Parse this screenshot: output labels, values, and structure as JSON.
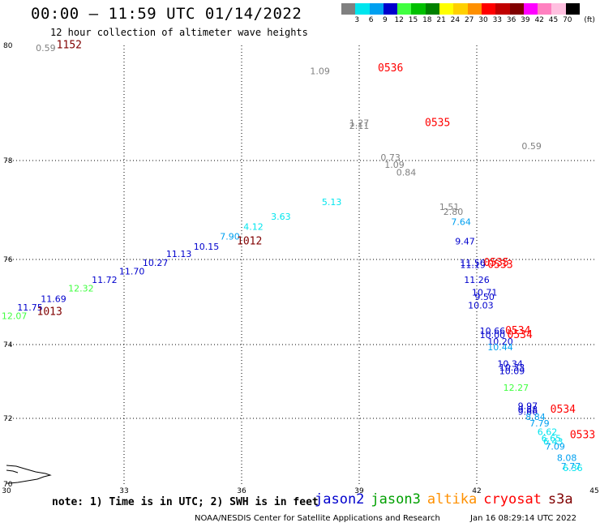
{
  "header": {
    "title": "00:00 – 11:59 UTC 01/14/2022",
    "subtitle": "12 hour collection of altimeter wave heights"
  },
  "legend": {
    "unit": "(ft)",
    "bins": [
      {
        "label": "3",
        "color": "#808080"
      },
      {
        "label": "6",
        "color": "#00e5ee"
      },
      {
        "label": "9",
        "color": "#00a0f0"
      },
      {
        "label": "12",
        "color": "#0000cd"
      },
      {
        "label": "15",
        "color": "#40ff40"
      },
      {
        "label": "18",
        "color": "#00c000"
      },
      {
        "label": "21",
        "color": "#008000"
      },
      {
        "label": "24",
        "color": "#ffff00"
      },
      {
        "label": "27",
        "color": "#ffd000"
      },
      {
        "label": "30",
        "color": "#ff9000"
      },
      {
        "label": "33",
        "color": "#ff0000"
      },
      {
        "label": "36",
        "color": "#c00000"
      },
      {
        "label": "39",
        "color": "#800000"
      },
      {
        "label": "42",
        "color": "#ff00ff"
      },
      {
        "label": "45",
        "color": "#ff80c0"
      },
      {
        "label": "70",
        "color": "#ffc0e0"
      },
      {
        "label": "",
        "color": "#000000"
      }
    ]
  },
  "map": {
    "lon_range": [
      30,
      45
    ],
    "lat_range": [
      70,
      80
    ],
    "lon_ticks": [
      "30",
      "33",
      "36",
      "39",
      "42",
      "45"
    ],
    "lat_ticks": [
      "70",
      "72",
      "74",
      "76",
      "78",
      "80"
    ]
  },
  "chart_data": {
    "type": "scatter",
    "x_label": "longitude",
    "y_label": "latitude",
    "points": [
      {
        "lon": 30.2,
        "lat": 74.6,
        "text": "12.07",
        "color": "#40ff40"
      },
      {
        "lon": 30.6,
        "lat": 74.8,
        "text": "11.75",
        "color": "#0000cd"
      },
      {
        "lon": 31.2,
        "lat": 75.0,
        "text": "11.69",
        "color": "#0000cd"
      },
      {
        "lon": 31.9,
        "lat": 75.25,
        "text": "12.32",
        "color": "#40ff40"
      },
      {
        "lon": 32.5,
        "lat": 75.45,
        "text": "11.72",
        "color": "#0000cd"
      },
      {
        "lon": 33.2,
        "lat": 75.65,
        "text": "11.70",
        "color": "#0000cd"
      },
      {
        "lon": 33.8,
        "lat": 75.85,
        "text": "10.27",
        "color": "#0000cd"
      },
      {
        "lon": 34.4,
        "lat": 76.05,
        "text": "11.13",
        "color": "#0000cd"
      },
      {
        "lon": 35.1,
        "lat": 76.2,
        "text": "10.15",
        "color": "#0000cd"
      },
      {
        "lon": 35.7,
        "lat": 76.4,
        "text": "7.90",
        "color": "#00a0f0"
      },
      {
        "lon": 36.3,
        "lat": 76.6,
        "text": "4.12",
        "color": "#00e5ee"
      },
      {
        "lon": 37.0,
        "lat": 76.8,
        "text": "3.63",
        "color": "#00e5ee"
      },
      {
        "lon": 38.3,
        "lat": 77.1,
        "text": "5.13",
        "color": "#00e5ee"
      },
      {
        "lon": 38.0,
        "lat": 79.5,
        "text": "1.09",
        "color": "#808080"
      },
      {
        "lon": 39.0,
        "lat": 78.6,
        "text": "1.27",
        "color": "#808080"
      },
      {
        "lon": 39.0,
        "lat": 78.55,
        "text": "2.11",
        "color": "#808080"
      },
      {
        "lon": 31.0,
        "lat": 79.9,
        "text": "0.59",
        "color": "#808080"
      },
      {
        "lon": 39.8,
        "lat": 78.0,
        "text": "0.73",
        "color": "#808080"
      },
      {
        "lon": 39.9,
        "lat": 77.85,
        "text": "1.09",
        "color": "#808080"
      },
      {
        "lon": 40.2,
        "lat": 77.7,
        "text": "0.84",
        "color": "#808080"
      },
      {
        "lon": 43.4,
        "lat": 78.2,
        "text": "0.59",
        "color": "#808080"
      },
      {
        "lon": 41.3,
        "lat": 77.0,
        "text": "1.51",
        "color": "#808080"
      },
      {
        "lon": 41.4,
        "lat": 76.9,
        "text": "2.80",
        "color": "#808080"
      },
      {
        "lon": 41.6,
        "lat": 76.7,
        "text": "7.64",
        "color": "#00a0f0"
      },
      {
        "lon": 41.7,
        "lat": 76.3,
        "text": "9.47",
        "color": "#0000cd"
      },
      {
        "lon": 41.9,
        "lat": 75.85,
        "text": "11.50",
        "color": "#0000cd"
      },
      {
        "lon": 41.9,
        "lat": 75.8,
        "text": "11.19",
        "color": "#0000cd"
      },
      {
        "lon": 42.0,
        "lat": 75.45,
        "text": "11.26",
        "color": "#0000cd"
      },
      {
        "lon": 42.2,
        "lat": 75.15,
        "text": "10.71",
        "color": "#0000cd"
      },
      {
        "lon": 42.2,
        "lat": 75.05,
        "text": "9.50",
        "color": "#0000cd"
      },
      {
        "lon": 42.1,
        "lat": 74.85,
        "text": "10.03",
        "color": "#0000cd"
      },
      {
        "lon": 42.4,
        "lat": 74.25,
        "text": "10.66",
        "color": "#0000cd"
      },
      {
        "lon": 42.4,
        "lat": 74.15,
        "text": "10.00",
        "color": "#0000cd"
      },
      {
        "lon": 42.6,
        "lat": 74.0,
        "text": "10.20",
        "color": "#0000cd"
      },
      {
        "lon": 42.6,
        "lat": 73.85,
        "text": "10.44",
        "color": "#00a0f0"
      },
      {
        "lon": 42.85,
        "lat": 73.4,
        "text": "10.34",
        "color": "#0000cd"
      },
      {
        "lon": 42.9,
        "lat": 73.3,
        "text": "10.33",
        "color": "#0000cd"
      },
      {
        "lon": 42.9,
        "lat": 73.2,
        "text": "10.09",
        "color": "#0000cd"
      },
      {
        "lon": 43.0,
        "lat": 72.75,
        "text": "12.27",
        "color": "#40ff40"
      },
      {
        "lon": 43.3,
        "lat": 72.25,
        "text": "9.97",
        "color": "#0000cd"
      },
      {
        "lon": 43.3,
        "lat": 72.15,
        "text": "9.88",
        "color": "#0000cd"
      },
      {
        "lon": 43.3,
        "lat": 72.1,
        "text": "9.86",
        "color": "#0000cd"
      },
      {
        "lon": 43.5,
        "lat": 71.95,
        "text": "8.84",
        "color": "#00a0f0"
      },
      {
        "lon": 43.6,
        "lat": 71.75,
        "text": "7.79",
        "color": "#00a0f0"
      },
      {
        "lon": 43.8,
        "lat": 71.5,
        "text": "6.62",
        "color": "#00e5ee"
      },
      {
        "lon": 43.9,
        "lat": 71.3,
        "text": "6.65",
        "color": "#00e5ee"
      },
      {
        "lon": 43.95,
        "lat": 71.2,
        "text": "6.43",
        "color": "#00e5ee"
      },
      {
        "lon": 44.0,
        "lat": 71.05,
        "text": "7.09",
        "color": "#00a0f0"
      },
      {
        "lon": 44.3,
        "lat": 70.7,
        "text": "8.08",
        "color": "#00a0f0"
      },
      {
        "lon": 44.4,
        "lat": 70.45,
        "text": "7.77",
        "color": "#00a0f0"
      },
      {
        "lon": 44.45,
        "lat": 70.4,
        "text": "6.36",
        "color": "#00e5ee"
      }
    ],
    "time_labels": [
      {
        "lon": 31.6,
        "lat": 79.95,
        "text": "1152",
        "color": "#800000"
      },
      {
        "lon": 39.8,
        "lat": 79.55,
        "text": "0536",
        "color": "#ff0000"
      },
      {
        "lon": 41.0,
        "lat": 78.6,
        "text": "0535",
        "color": "#ff0000"
      },
      {
        "lon": 36.2,
        "lat": 76.3,
        "text": "1012",
        "color": "#800000"
      },
      {
        "lon": 31.1,
        "lat": 74.7,
        "text": "1013",
        "color": "#800000"
      },
      {
        "lon": 42.5,
        "lat": 75.85,
        "text": "0535",
        "color": "#ff0000"
      },
      {
        "lon": 42.6,
        "lat": 75.8,
        "text": "0533",
        "color": "#ff0000"
      },
      {
        "lon": 43.05,
        "lat": 74.25,
        "text": "0534",
        "color": "#ff0000"
      },
      {
        "lon": 43.1,
        "lat": 74.15,
        "text": "0534",
        "color": "#ff0000"
      },
      {
        "lon": 44.2,
        "lat": 72.15,
        "text": "0534",
        "color": "#ff0000"
      },
      {
        "lon": 44.7,
        "lat": 71.4,
        "text": "0533",
        "color": "#ff0000"
      }
    ]
  },
  "footer": {
    "note": "note: 1) Time is in UTC; 2) SWH is in feet",
    "satellites": [
      {
        "name": "jason2",
        "color": "#0000cd"
      },
      {
        "name": "jason3",
        "color": "#00a000"
      },
      {
        "name": "altika",
        "color": "#ff9000"
      },
      {
        "name": "cryosat",
        "color": "#ff0000"
      },
      {
        "name": "s3a",
        "color": "#800000"
      }
    ],
    "credit": "NOAA/NESDIS Center for Satellite Applications and Research",
    "timestamp": "Jan 16 08:29:14 UTC 2022"
  }
}
